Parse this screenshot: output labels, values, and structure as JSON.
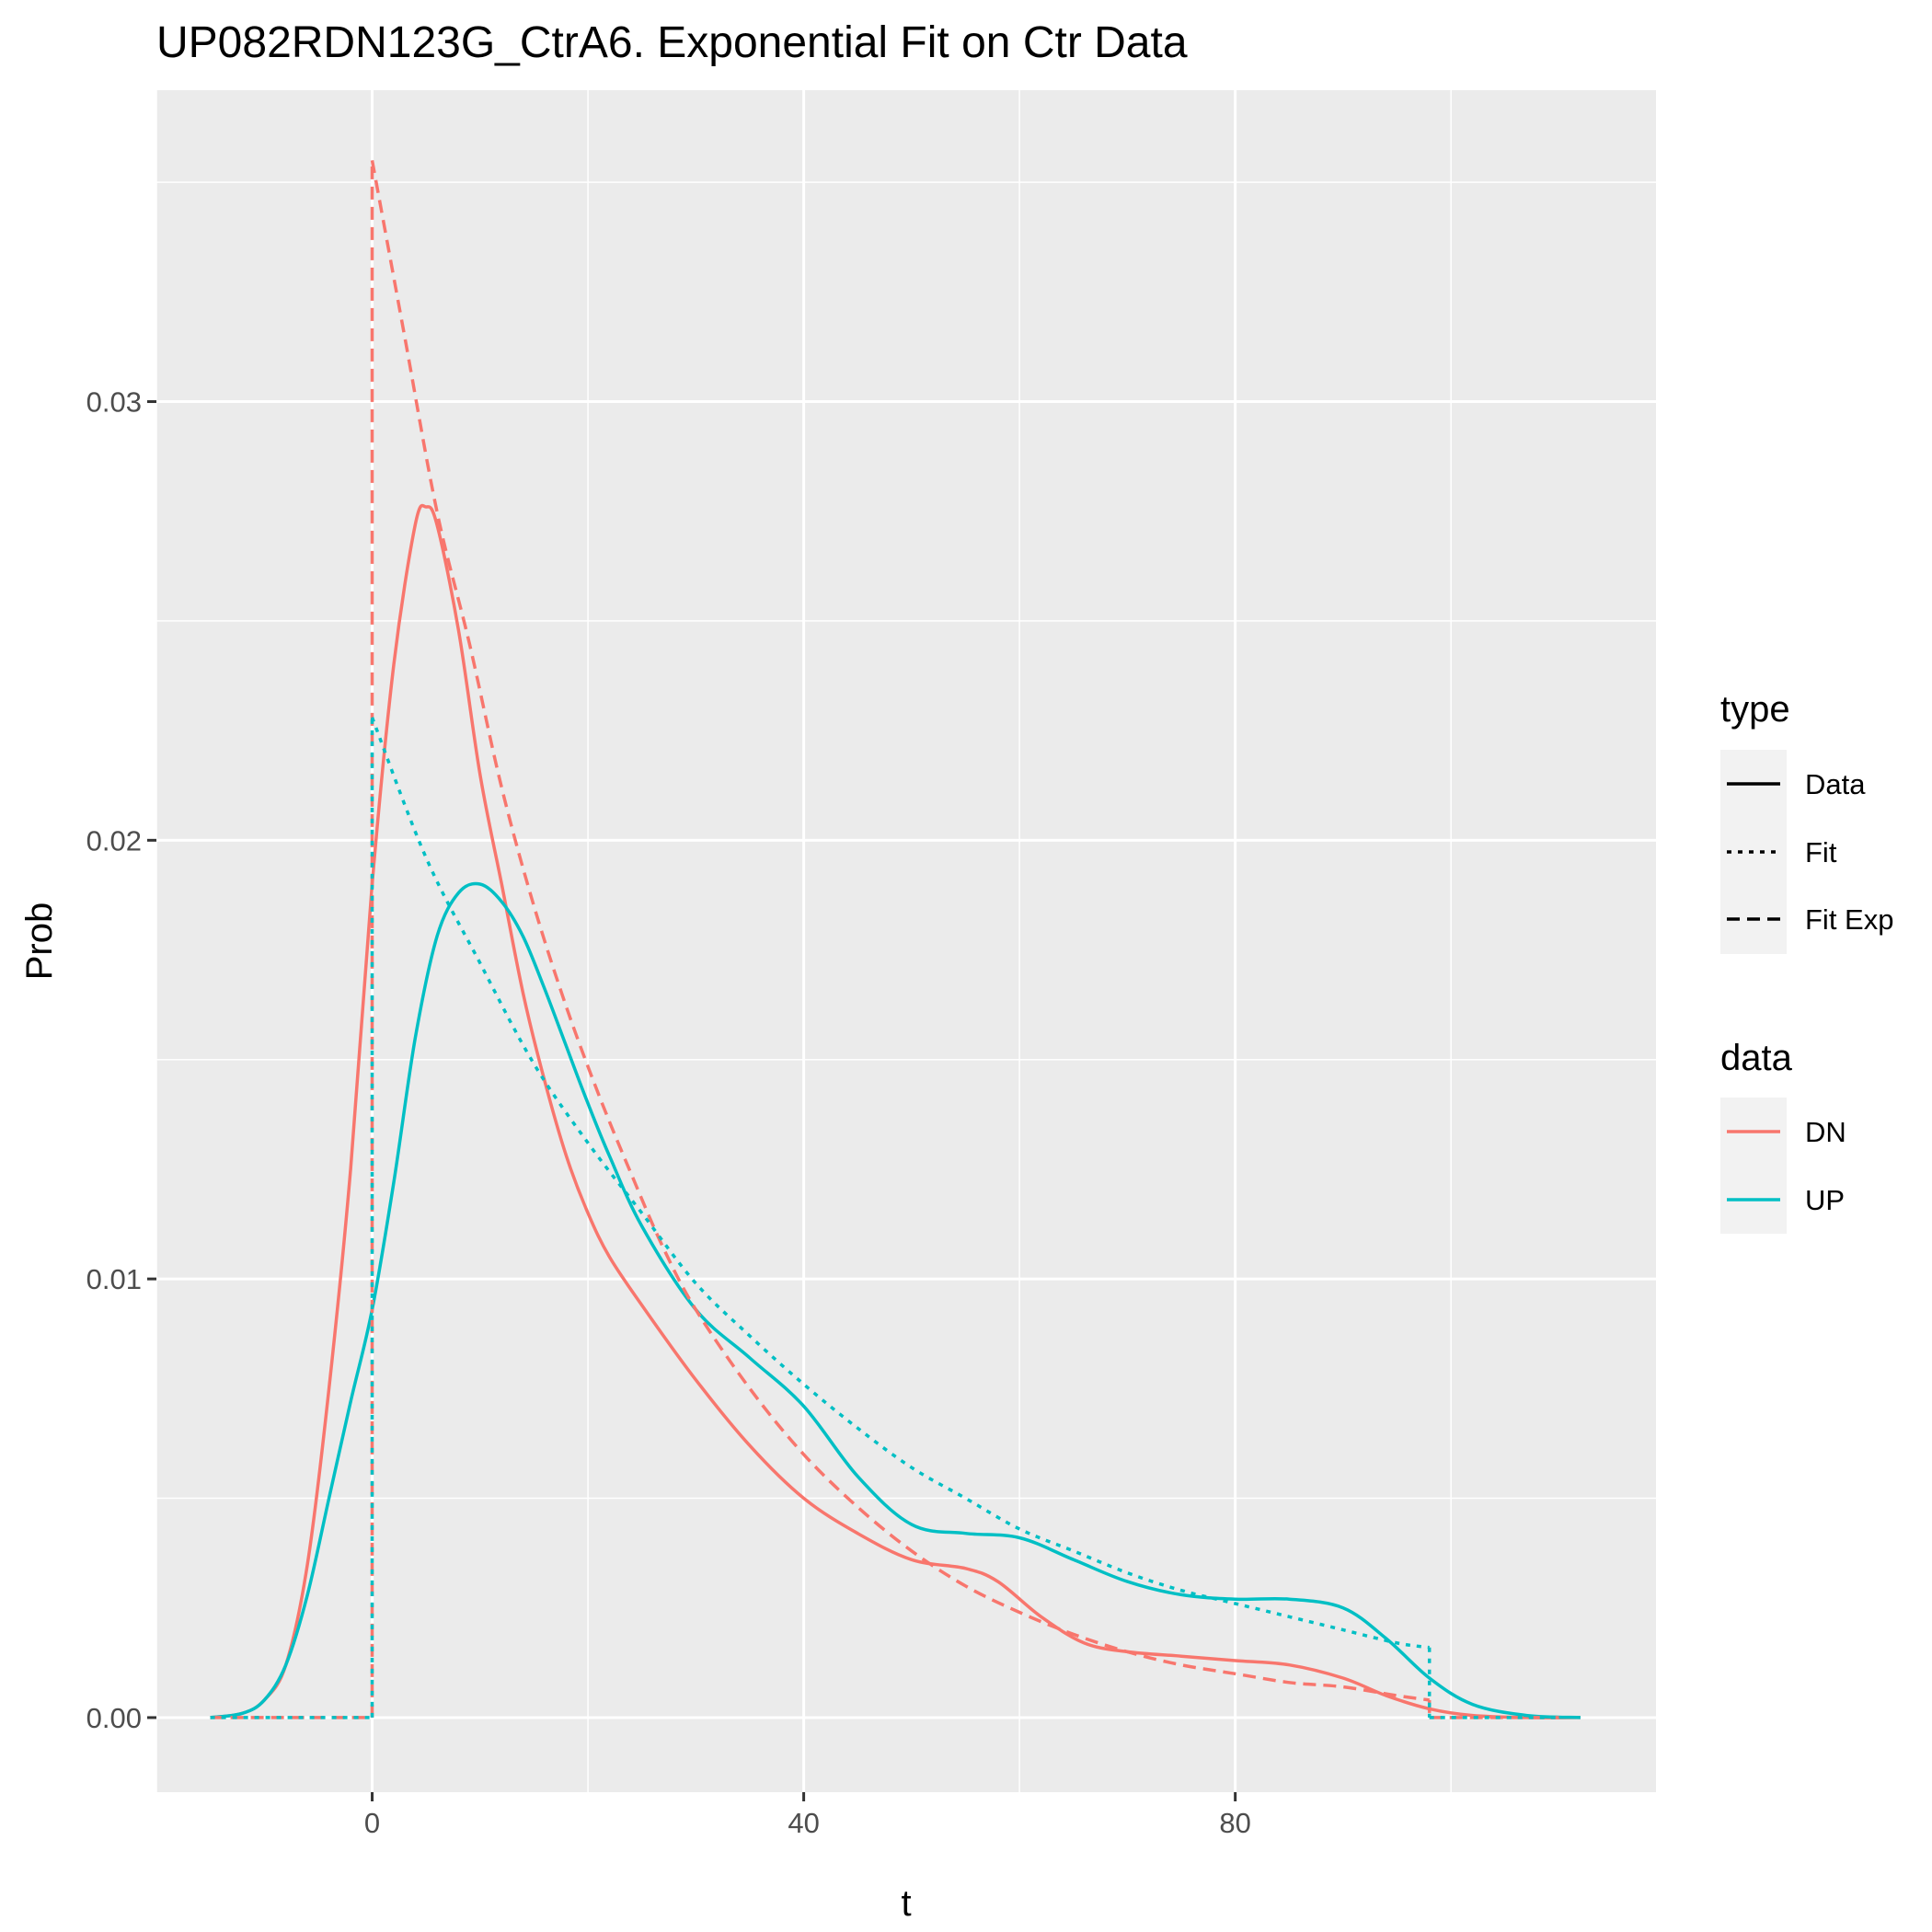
{
  "chart_data": {
    "type": "line",
    "title": "UP082RDN123G_CtrA6. Exponential Fit on Ctr Data",
    "xlabel": "t",
    "ylabel": "Prob",
    "xlim": [
      -20,
      119
    ],
    "ylim": [
      -0.0017,
      0.0371
    ],
    "x_ticks": [
      0,
      40,
      80
    ],
    "x_tick_labels": [
      "0",
      "40",
      "80"
    ],
    "y_ticks": [
      0.0,
      0.01,
      0.02,
      0.03
    ],
    "y_tick_labels": [
      "0.00",
      "0.01",
      "0.02",
      "0.03"
    ],
    "grid": true,
    "background": "#ebebeb",
    "legend": [
      {
        "title": "type",
        "entries": [
          {
            "label": "Data",
            "linetype": "solid"
          },
          {
            "label": "Fit",
            "linetype": "dotted"
          },
          {
            "label": "Fit Exp",
            "linetype": "dashed"
          }
        ]
      },
      {
        "title": "data",
        "entries": [
          {
            "label": "DN",
            "color": "#F8766D"
          },
          {
            "label": "UP",
            "color": "#00BFC4"
          }
        ]
      }
    ],
    "legend_position": "right",
    "series": [
      {
        "name": "DN",
        "type": "Data",
        "color": "#F8766D",
        "linetype": "solid",
        "x": [
          -15,
          -12,
          -10,
          -8,
          -6,
          -4,
          -2,
          0,
          2,
          4,
          5,
          6,
          8,
          10,
          12,
          14,
          16,
          18,
          20,
          22,
          25,
          30,
          35,
          40,
          45,
          50,
          55,
          58,
          62,
          66,
          70,
          75,
          80,
          85,
          90,
          94,
          98,
          102,
          107,
          112
        ],
        "y": [
          0.0,
          0.0001,
          0.0004,
          0.0012,
          0.0035,
          0.0075,
          0.0125,
          0.019,
          0.024,
          0.0272,
          0.0276,
          0.0272,
          0.0248,
          0.0215,
          0.019,
          0.0165,
          0.0145,
          0.0128,
          0.0115,
          0.0105,
          0.0094,
          0.0077,
          0.0062,
          0.005,
          0.0042,
          0.0036,
          0.0034,
          0.0031,
          0.0023,
          0.0017,
          0.0015,
          0.0014,
          0.0013,
          0.0012,
          0.0009,
          0.0005,
          0.0002,
          5e-05,
          0.0,
          0.0
        ]
      },
      {
        "name": "UP",
        "type": "Data",
        "color": "#00BFC4",
        "linetype": "solid",
        "x": [
          -15,
          -12,
          -10,
          -8,
          -6,
          -4,
          -2,
          0,
          2,
          4,
          6,
          8,
          10,
          12,
          14,
          16,
          18,
          20,
          22,
          25,
          30,
          35,
          40,
          45,
          50,
          55,
          60,
          65,
          70,
          75,
          80,
          85,
          90,
          94,
          98,
          102,
          107,
          112
        ],
        "y": [
          0.0,
          0.0001,
          0.0004,
          0.0012,
          0.0028,
          0.005,
          0.0072,
          0.0093,
          0.0122,
          0.0155,
          0.0178,
          0.0188,
          0.019,
          0.0186,
          0.0178,
          0.0166,
          0.0153,
          0.014,
          0.0128,
          0.0112,
          0.0093,
          0.0082,
          0.0071,
          0.0055,
          0.0044,
          0.0042,
          0.0041,
          0.0036,
          0.0031,
          0.0028,
          0.0027,
          0.0027,
          0.0025,
          0.0018,
          0.0009,
          0.0003,
          5e-05,
          0.0
        ]
      },
      {
        "name": "DN",
        "type": "Fit Exp",
        "color": "#F8766D",
        "linetype": "dashed",
        "x": [
          -15,
          0,
          0,
          3,
          6,
          9,
          12,
          15,
          18,
          21,
          24,
          27,
          30,
          35,
          40,
          45,
          50,
          55,
          60,
          65,
          70,
          75,
          80,
          85,
          90,
          95,
          98,
          98,
          110
        ],
        "y": [
          0.0,
          0.0,
          0.0355,
          0.0315,
          0.0275,
          0.0245,
          0.0212,
          0.0185,
          0.0162,
          0.0142,
          0.0124,
          0.0107,
          0.0093,
          0.0075,
          0.006,
          0.0048,
          0.0038,
          0.003,
          0.0024,
          0.0019,
          0.0015,
          0.0012,
          0.001,
          0.0008,
          0.0007,
          0.0005,
          0.0004,
          0.0,
          0.0
        ]
      },
      {
        "name": "UP",
        "type": "Fit",
        "color": "#00BFC4",
        "linetype": "dotted",
        "x": [
          -15,
          0,
          0,
          5,
          10,
          15,
          20,
          25,
          30,
          35,
          40,
          45,
          50,
          55,
          60,
          65,
          70,
          75,
          80,
          85,
          90,
          95,
          98,
          98,
          110
        ],
        "y": [
          0.0,
          0.0,
          0.0228,
          0.0196,
          0.0172,
          0.0149,
          0.0131,
          0.0115,
          0.0099,
          0.0087,
          0.0076,
          0.0066,
          0.0057,
          0.005,
          0.0043,
          0.0038,
          0.0033,
          0.0029,
          0.0026,
          0.0023,
          0.002,
          0.0017,
          0.0016,
          0.0,
          0.0
        ]
      }
    ]
  }
}
